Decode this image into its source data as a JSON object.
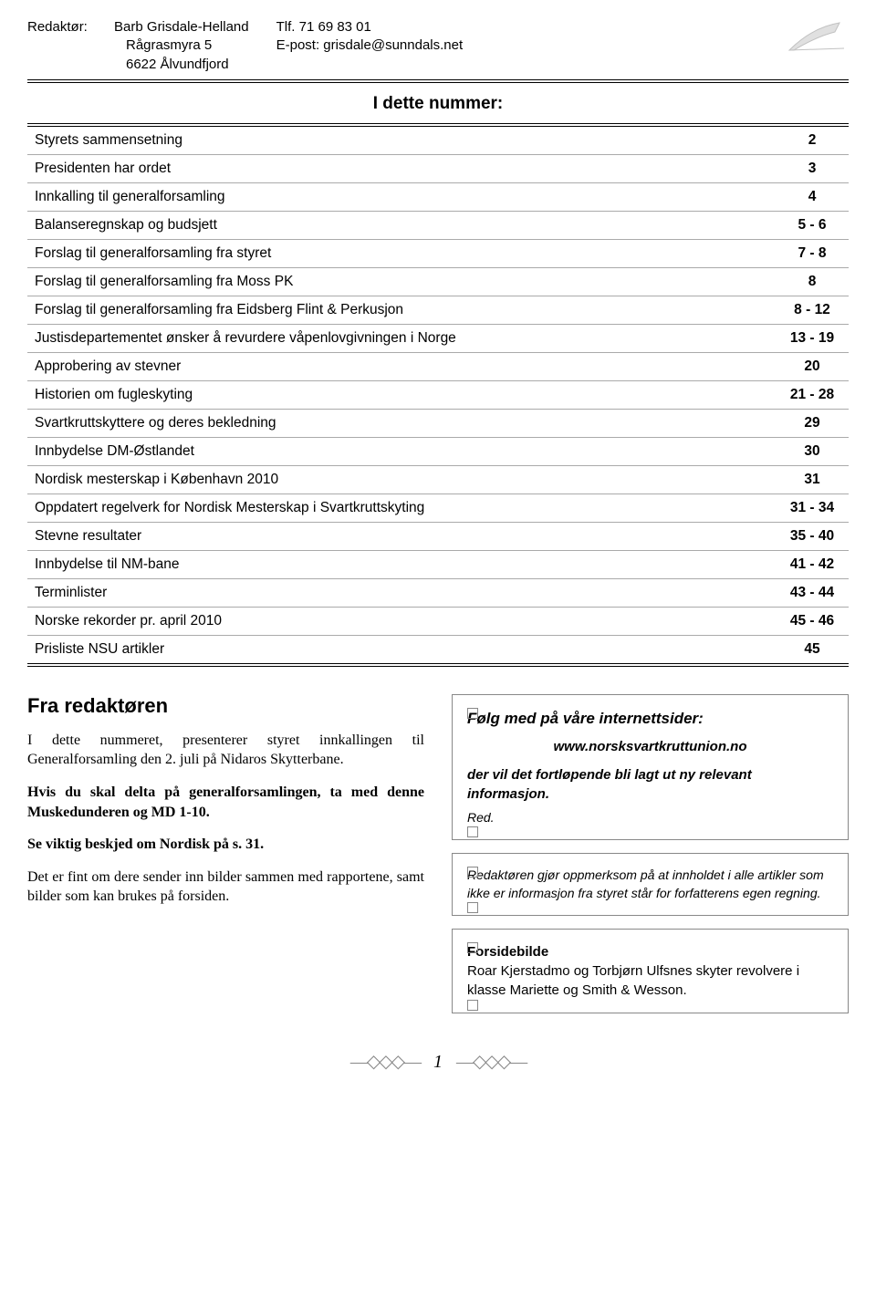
{
  "header": {
    "label_editor": "Redaktør:",
    "editor_name": "Barb Grisdale-Helland",
    "addr1": "Rågrasmyra 5",
    "addr2": "6622 Ålvundfjord",
    "phone_label": "Tlf. 71 69 83 01",
    "email_label": "E-post: grisdale@sunndals.net"
  },
  "toc_title": "I dette nummer:",
  "toc": [
    {
      "t": "Styrets sammensetning",
      "p": "2"
    },
    {
      "t": "Presidenten har ordet",
      "p": "3"
    },
    {
      "t": "Innkalling til generalforsamling",
      "p": "4"
    },
    {
      "t": "Balanseregnskap og budsjett",
      "p": "5 - 6"
    },
    {
      "t": "Forslag til generalforsamling fra styret",
      "p": "7 - 8"
    },
    {
      "t": "Forslag til generalforsamling fra Moss PK",
      "p": "8"
    },
    {
      "t": "Forslag til generalforsamling fra Eidsberg Flint & Perkusjon",
      "p": "8 - 12"
    },
    {
      "t": "Justisdepartementet ønsker å revurdere våpenlovgivningen i Norge",
      "p": "13 - 19"
    },
    {
      "t": "Approbering av stevner",
      "p": "20"
    },
    {
      "t": "Historien om fugleskyting",
      "p": "21 - 28"
    },
    {
      "t": "Svartkruttskyttere og deres bekledning",
      "p": "29"
    },
    {
      "t": "Innbydelse DM-Østlandet",
      "p": "30"
    },
    {
      "t": "Nordisk mesterskap i København 2010",
      "p": "31"
    },
    {
      "t": "Oppdatert regelverk for Nordisk Mesterskap i Svartkruttskyting",
      "p": "31 - 34"
    },
    {
      "t": "Stevne resultater",
      "p": "35 - 40"
    },
    {
      "t": "Innbydelse til NM-bane",
      "p": "41 - 42"
    },
    {
      "t": "Terminlister",
      "p": "43 - 44"
    },
    {
      "t": "Norske rekorder pr. april 2010",
      "p": "45 - 46"
    },
    {
      "t": "Prisliste NSU artikler",
      "p": "45"
    }
  ],
  "left": {
    "title": "Fra redaktøren",
    "p1": "I dette nummeret, presenterer styret innkallingen til Generalforsamling den 2. juli på Nidaros Skytterbane.",
    "p2": "Hvis du skal delta på generalforsamlingen, ta med denne Muskedunderen og MD 1-10.",
    "p3": "Se viktig beskjed om Nordisk på s. 31.",
    "p4": "Det er fint om dere sender inn bilder sammen med rapportene, samt bilder som kan brukes på forsiden."
  },
  "box1": {
    "line1": "Følg med på våre internettsider:",
    "url": "www.norsksvartkruttunion.no",
    "line2": "der vil det fortløpende bli lagt ut ny relevant informasjon.",
    "sign": "Red."
  },
  "box2": {
    "text": "Redaktøren gjør oppmerksom på at innholdet i alle artikler som ikke er informasjon fra styret står for forfatterens egen regning."
  },
  "box3": {
    "title": "Forsidebilde",
    "text": "Roar Kjerstadmo og Torbjørn Ulfsnes skyter revolvere i klasse Mariette og Smith & Wesson."
  },
  "page_no": "1"
}
